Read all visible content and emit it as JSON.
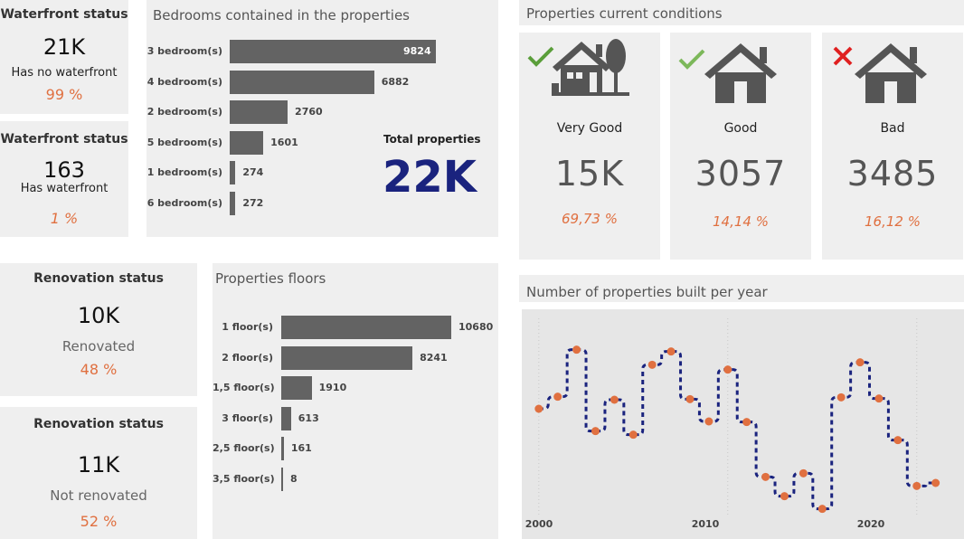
{
  "waterfront_cards": [
    {
      "title": "Waterfront status",
      "value": "21K",
      "label": "Has no waterfront",
      "pct": "99 %"
    },
    {
      "title": "Waterfront status",
      "value": "163",
      "label": "Has waterfront",
      "pct": "1 %"
    }
  ],
  "renovation_cards": [
    {
      "title": "Renovation status",
      "value": "10K",
      "label": "Renovated",
      "pct": "48 %"
    },
    {
      "title": "Renovation status",
      "value": "11K",
      "label": "Not renovated",
      "pct": "52 %"
    }
  ],
  "bedrooms": {
    "title": "Bedrooms contained in the properties",
    "total_label": "Total properties",
    "total_value": "22K",
    "value_labels": [
      "9824",
      "6882",
      "2760",
      "1601",
      "274",
      "272"
    ]
  },
  "floors": {
    "title": "Properties floors",
    "value_labels": [
      "10680",
      "8241",
      "1910",
      "613",
      "161",
      "8"
    ]
  },
  "conditions": {
    "title": "Properties current conditions",
    "items": [
      {
        "label": "Very Good",
        "value": "15K",
        "pct": "69,73 %",
        "status_icon": "check-icon",
        "house_icon": "house-with-tree-icon",
        "status_color": "#5a9e3a"
      },
      {
        "label": "Good",
        "value": "3057",
        "pct": "14,14 %",
        "status_icon": "check-icon",
        "house_icon": "house-icon",
        "status_color": "#7cb85a"
      },
      {
        "label": "Bad",
        "value": "3485",
        "pct": "16,12 %",
        "status_icon": "cross-icon",
        "house_icon": "house-icon",
        "status_color": "#e02020"
      }
    ]
  },
  "built_chart": {
    "title": "Number of properties built per year",
    "x_ticks": [
      "2000",
      "2010",
      "2020"
    ]
  },
  "colors": {
    "bar": "#636363",
    "accent_pct": "#e07040",
    "kpi_total": "#1a237e",
    "line": "#1a237e",
    "dot": "#e07040"
  },
  "chart_data": [
    {
      "type": "bar",
      "title": "Bedrooms contained in the properties",
      "categories": [
        "3 bedroom(s)",
        "4 bedroom(s)",
        "2 bedroom(s)",
        "5 bedroom(s)",
        "1 bedroom(s)",
        "6 bedroom(s)"
      ],
      "values": [
        9824,
        6882,
        2760,
        1601,
        274,
        272
      ]
    },
    {
      "type": "bar",
      "title": "Properties floors",
      "categories": [
        "1 floor(s)",
        "2 floor(s)",
        "1,5 floor(s)",
        "3 floor(s)",
        "2,5 floor(s)",
        "3,5 floor(s)"
      ],
      "values": [
        10680,
        8241,
        1910,
        613,
        161,
        8
      ]
    },
    {
      "type": "line",
      "title": "Number of properties built per year",
      "x": [
        2000,
        2001,
        2002,
        2003,
        2004,
        2005,
        2006,
        2007,
        2008,
        2009,
        2010,
        2011,
        2012,
        2013,
        2014,
        2015,
        2016,
        2017,
        2018,
        2019,
        2020,
        2021
      ],
      "values": [
        450,
        470,
        548,
        413,
        465,
        407,
        523,
        545,
        466,
        429,
        515,
        428,
        337,
        305,
        343,
        284,
        469,
        527,
        467,
        398,
        322,
        327
      ],
      "xlim": [
        1999.1,
        2022.5
      ],
      "ylim": [
        270,
        600
      ],
      "xticks": [
        2000,
        2010,
        2020
      ],
      "grid": true
    }
  ]
}
